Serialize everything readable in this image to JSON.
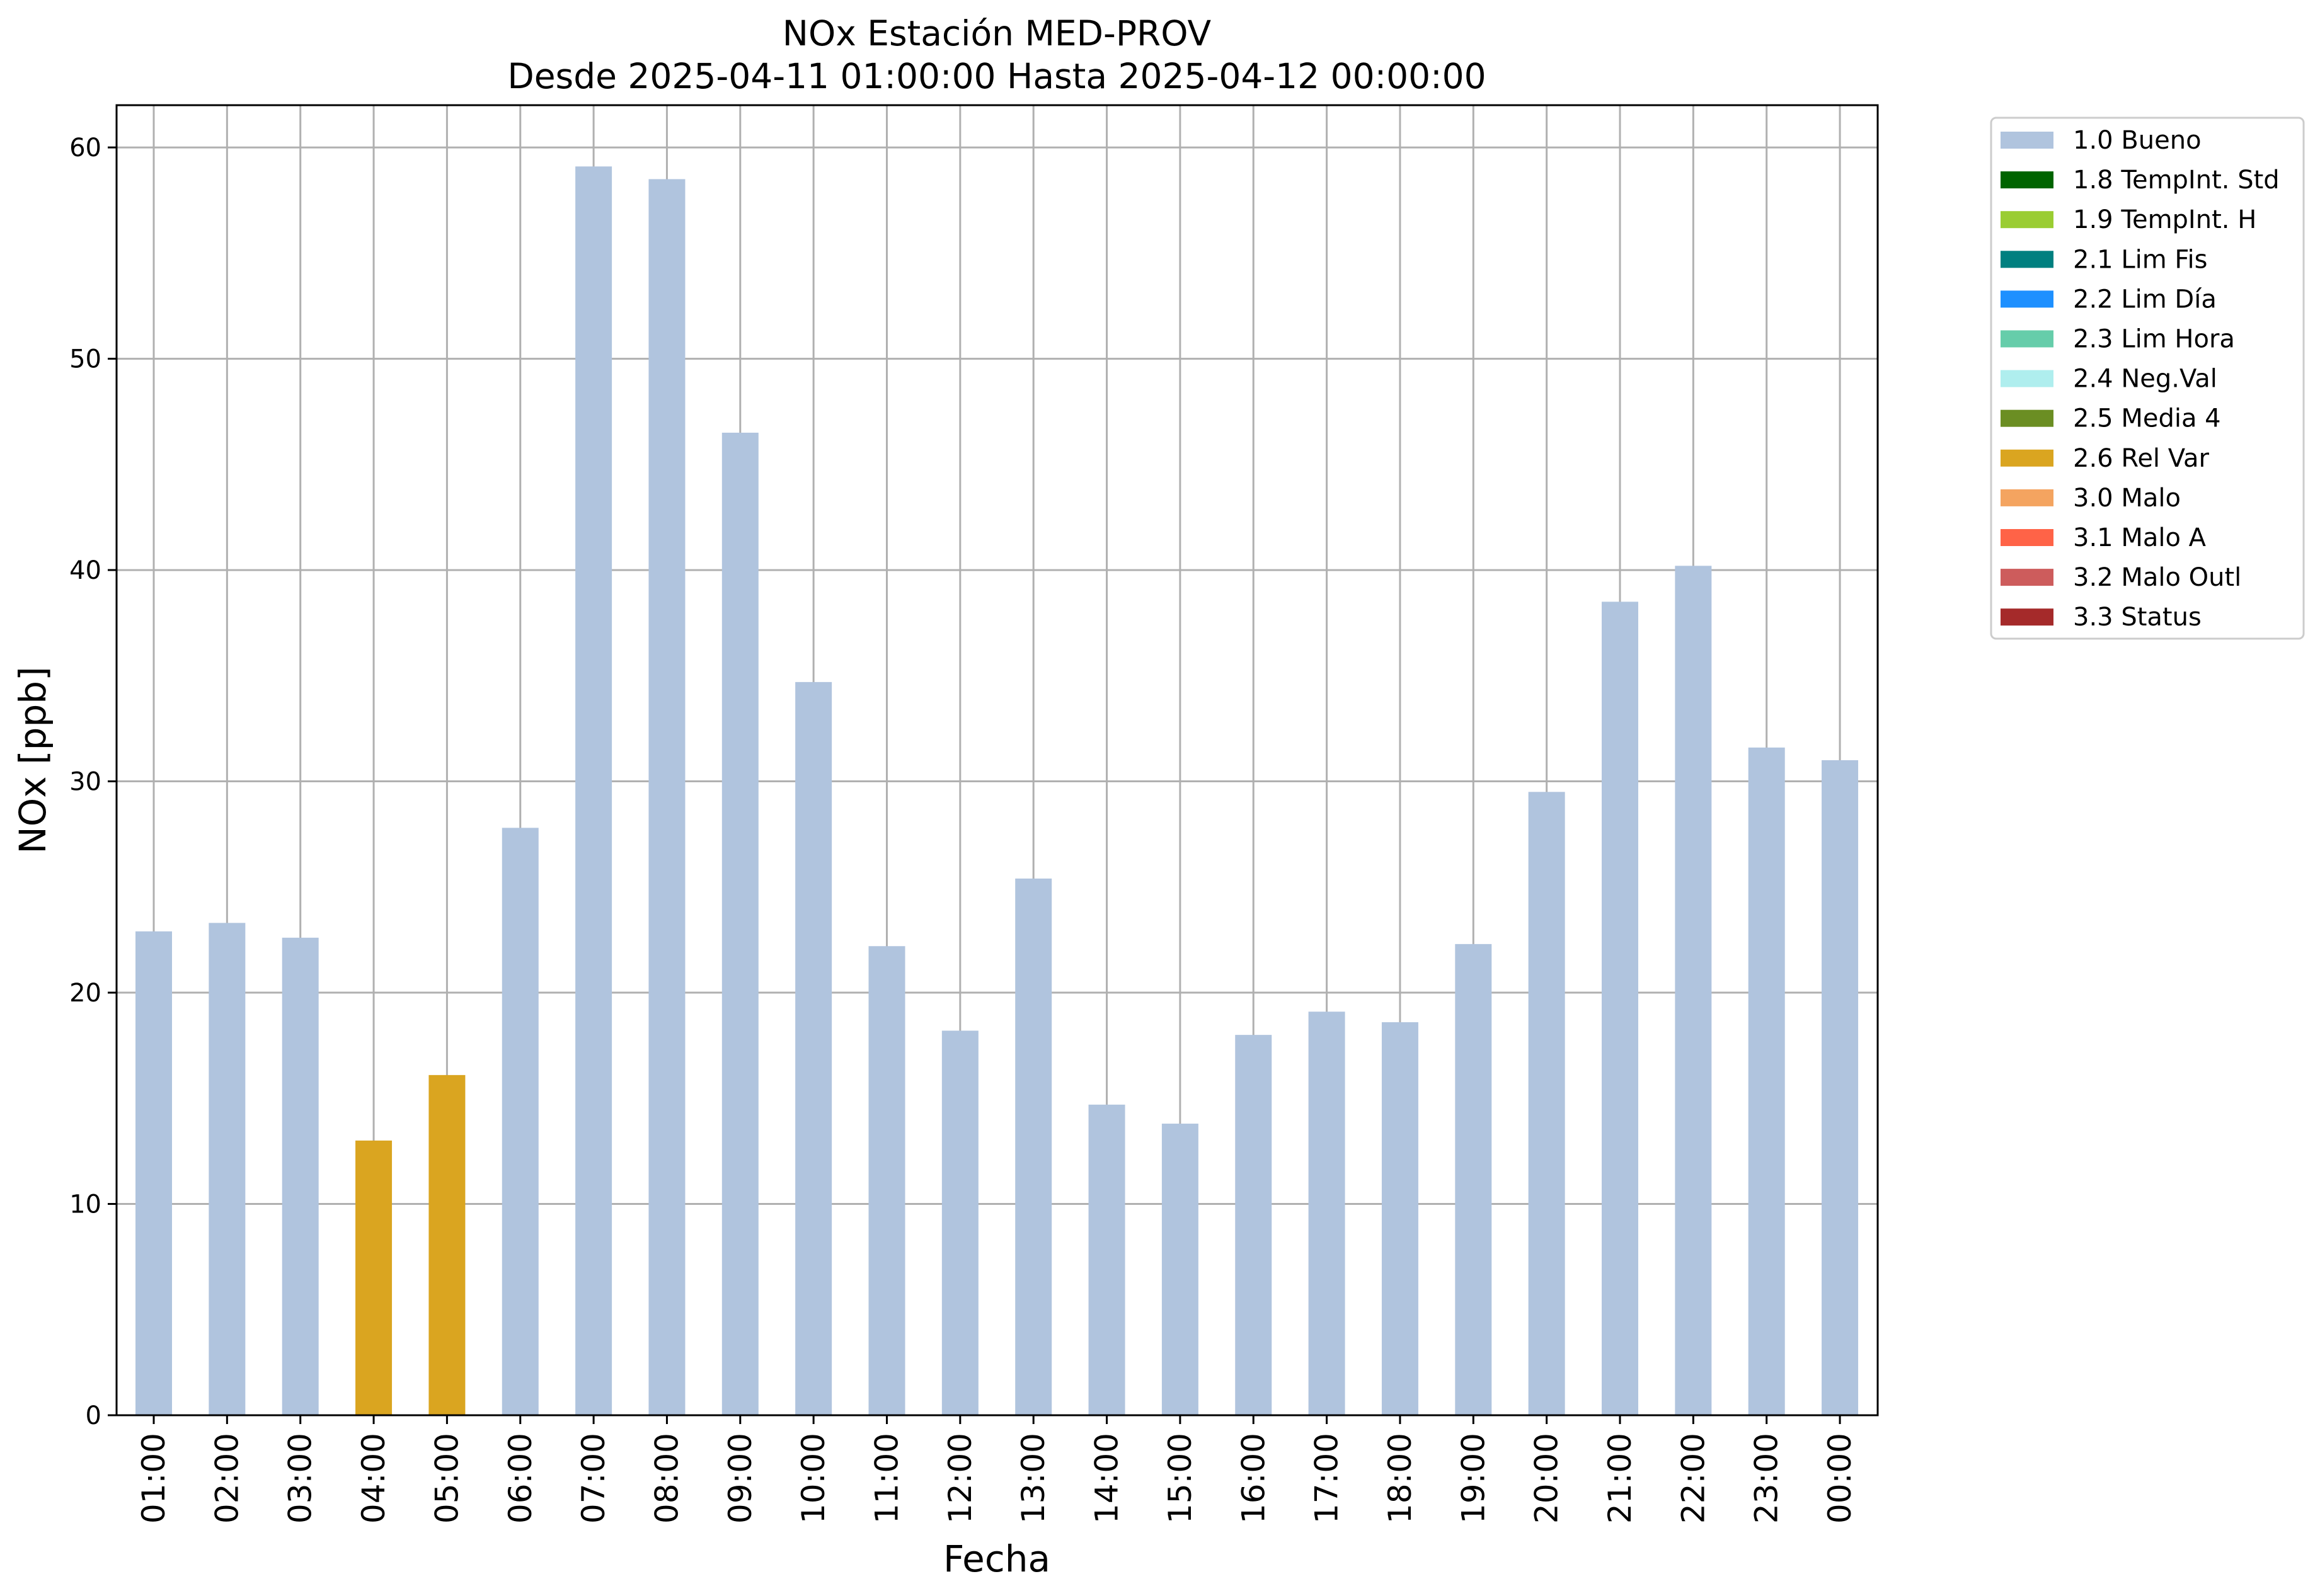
{
  "chart_data": {
    "type": "bar",
    "title": "NOx Estación MED-PROV",
    "subtitle": "Desde 2025-04-11 01:00:00 Hasta 2025-04-12 00:00:00",
    "xlabel": "Fecha",
    "ylabel": "NOx [ppb]",
    "ylim": [
      0,
      62
    ],
    "yticks": [
      0,
      10,
      20,
      30,
      40,
      50,
      60
    ],
    "grid": true,
    "legend_position": "outside-right-top",
    "categories": [
      "01:00",
      "02:00",
      "03:00",
      "04:00",
      "05:00",
      "06:00",
      "07:00",
      "08:00",
      "09:00",
      "10:00",
      "11:00",
      "12:00",
      "13:00",
      "14:00",
      "15:00",
      "16:00",
      "17:00",
      "18:00",
      "19:00",
      "20:00",
      "21:00",
      "22:00",
      "23:00",
      "00:00"
    ],
    "values": [
      22.9,
      23.3,
      22.6,
      13.0,
      16.1,
      27.8,
      59.1,
      58.5,
      46.5,
      34.7,
      22.2,
      18.2,
      25.4,
      14.7,
      13.8,
      18.0,
      19.1,
      18.6,
      22.3,
      29.5,
      38.5,
      40.2,
      31.6,
      31.0
    ],
    "flags": [
      "1.0 Bueno",
      "1.0 Bueno",
      "1.0 Bueno",
      "2.6 Rel Var",
      "2.6 Rel Var",
      "1.0 Bueno",
      "1.0 Bueno",
      "1.0 Bueno",
      "1.0 Bueno",
      "1.0 Bueno",
      "1.0 Bueno",
      "1.0 Bueno",
      "1.0 Bueno",
      "1.0 Bueno",
      "1.0 Bueno",
      "1.0 Bueno",
      "1.0 Bueno",
      "1.0 Bueno",
      "1.0 Bueno",
      "1.0 Bueno",
      "1.0 Bueno",
      "1.0 Bueno",
      "1.0 Bueno",
      "1.0 Bueno"
    ],
    "legend": [
      {
        "label": "1.0 Bueno",
        "color": "#b0c4de"
      },
      {
        "label": "1.8 TempInt. Std",
        "color": "#006400"
      },
      {
        "label": "1.9 TempInt. H",
        "color": "#9acd32"
      },
      {
        "label": "2.1 Lim Fis",
        "color": "#008080"
      },
      {
        "label": "2.2 Lim Día",
        "color": "#1e90ff"
      },
      {
        "label": "2.3 Lim Hora",
        "color": "#66cdaa"
      },
      {
        "label": "2.4 Neg.Val",
        "color": "#afeeee"
      },
      {
        "label": "2.5 Media 4",
        "color": "#6b8e23"
      },
      {
        "label": "2.6 Rel Var",
        "color": "#daa520"
      },
      {
        "label": "3.0 Malo",
        "color": "#f4a460"
      },
      {
        "label": "3.1 Malo A",
        "color": "#ff6347"
      },
      {
        "label": "3.2 Malo Outl",
        "color": "#cd5c5c"
      },
      {
        "label": "3.3 Status",
        "color": "#a52a2a"
      }
    ]
  }
}
